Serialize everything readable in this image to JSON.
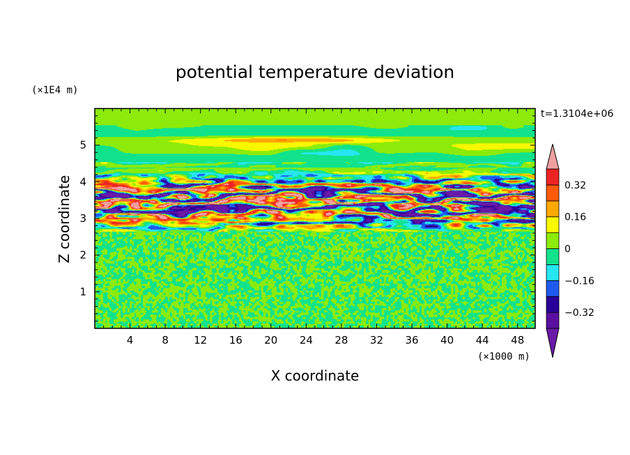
{
  "chart_data": {
    "type": "heatmap",
    "title": "potential temperature deviation",
    "xlabel": "X coordinate",
    "ylabel": "Z coordinate",
    "x_unit_label": "(×1000 m)",
    "y_unit_label": "(×1E4 m)",
    "time_label": "t=1.3104e+06",
    "xlim": [
      0,
      50
    ],
    "ylim": [
      0,
      6
    ],
    "x_ticks": [
      "4",
      "8",
      "12",
      "16",
      "20",
      "24",
      "28",
      "32",
      "36",
      "40",
      "44",
      "48"
    ],
    "x_tick_values": [
      4,
      8,
      12,
      16,
      20,
      24,
      28,
      32,
      36,
      40,
      44,
      48
    ],
    "y_ticks": [
      "1",
      "2",
      "3",
      "4",
      "5"
    ],
    "y_tick_values": [
      1,
      2,
      3,
      4,
      5
    ],
    "colorbar": {
      "levels": [
        -0.4,
        -0.32,
        -0.24,
        -0.16,
        -0.08,
        0,
        0.08,
        0.16,
        0.24,
        0.32,
        0.4
      ],
      "labels": [
        "0.32",
        "0.16",
        "0",
        "−0.16",
        "−0.32"
      ],
      "label_values": [
        0.32,
        0.16,
        0,
        -0.16,
        -0.32
      ],
      "colors": [
        "#5a0fa0",
        "#2a009a",
        "#1e5af0",
        "#26e6f2",
        "#10e38c",
        "#8ceb0a",
        "#f8f800",
        "#ffa800",
        "#ff5a0a",
        "#ee2222"
      ],
      "over_color": "#f0a0a0",
      "under_color": "#6a1aa8"
    },
    "bands": [
      {
        "zmin": 0.0,
        "zmax": 2.65,
        "pattern": "fine noise",
        "colors": [
          "#10e38c",
          "#8ceb0a"
        ]
      },
      {
        "zmin": 2.65,
        "zmax": 4.5,
        "pattern": "layered turbulent structures",
        "colors": [
          "#5a0fa0",
          "#2a009a",
          "#1e5af0",
          "#26e6f2",
          "#10e38c",
          "#8ceb0a",
          "#f8f800",
          "#ffa800",
          "#ff5a0a",
          "#ee2222",
          "#f0a0a0"
        ]
      },
      {
        "zmin": 4.5,
        "zmax": 6.0,
        "pattern": "weak horizontal layers",
        "colors": [
          "#10e38c",
          "#8ceb0a",
          "#26e6f2",
          "#f8f800"
        ]
      }
    ]
  }
}
